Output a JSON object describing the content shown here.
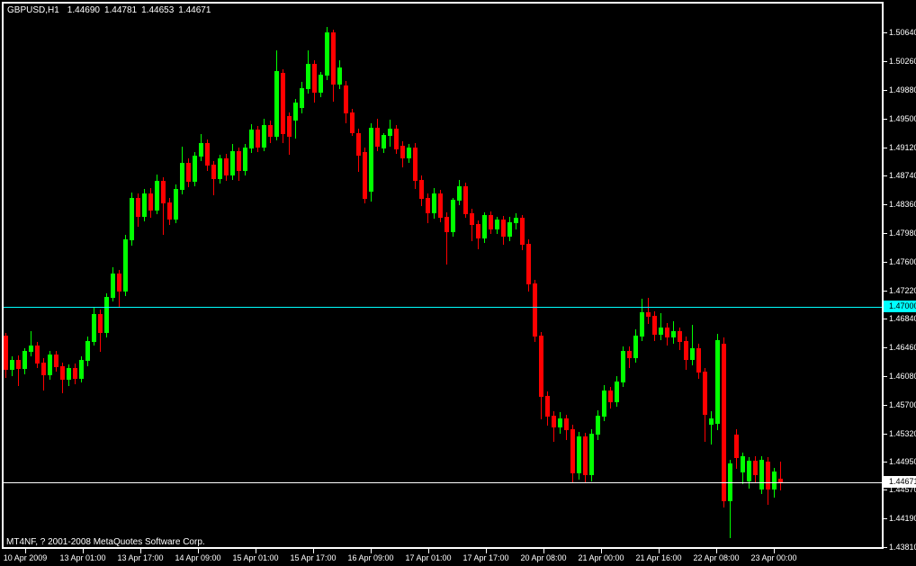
{
  "header": {
    "symbol_period": "GBPUSD,H1",
    "open": "1.44690",
    "high": "1.44781",
    "low": "1.44653",
    "close": "1.44671"
  },
  "footer": {
    "copyright": "MT4NF, ? 2001-2008 MetaQuotes Software Corp."
  },
  "price_axis": {
    "labels": [
      "1.50640",
      "1.50260",
      "1.49880",
      "1.49500",
      "1.49120",
      "1.48740",
      "1.48360",
      "1.47980",
      "1.47600",
      "1.47220",
      "1.46840",
      "1.46460",
      "1.46080",
      "1.45700",
      "1.45320",
      "1.44950",
      "1.44570",
      "1.44190",
      "1.43810"
    ]
  },
  "time_axis": {
    "labels": [
      "10 Apr 2009",
      "13 Apr 01:00",
      "13 Apr 17:00",
      "14 Apr 09:00",
      "15 Apr 01:00",
      "15 Apr 17:00",
      "16 Apr 09:00",
      "17 Apr 01:00",
      "17 Apr 17:00",
      "20 Apr 08:00",
      "21 Apr 00:00",
      "21 Apr 16:00",
      "22 Apr 08:00",
      "23 Apr 00:00"
    ]
  },
  "hlines": [
    {
      "name": "level-line",
      "price": 1.47,
      "label": "1.47000",
      "color": "#00FFFF"
    },
    {
      "name": "current-price-line",
      "price": 1.44671,
      "label": "1.44671",
      "color": "#FFFFFF"
    }
  ],
  "chart_data": {
    "type": "candlestick",
    "title": "GBPUSD,H1",
    "symbol": "GBPUSD",
    "timeframe": "H1",
    "up_color": "#00FF00",
    "down_color": "#FF0000",
    "background": "#000000",
    "grid": false,
    "y_range": [
      1.4381,
      1.509
    ],
    "x_range_labels": [
      "10 Apr 2009",
      "23 Apr 00:00"
    ],
    "legend_position": "none",
    "candles_ohlc": [
      [
        1.4662,
        1.4665,
        1.4607,
        1.4618
      ],
      [
        1.4618,
        1.4634,
        1.4609,
        1.463
      ],
      [
        1.463,
        1.4636,
        1.4596,
        1.4619
      ],
      [
        1.4619,
        1.4645,
        1.4612,
        1.4641
      ],
      [
        1.4641,
        1.4668,
        1.4636,
        1.4649
      ],
      [
        1.4649,
        1.4654,
        1.462,
        1.4626
      ],
      [
        1.4626,
        1.4632,
        1.459,
        1.4611
      ],
      [
        1.4611,
        1.4641,
        1.4605,
        1.4637
      ],
      [
        1.4637,
        1.4642,
        1.4615,
        1.4621
      ],
      [
        1.4621,
        1.4626,
        1.4587,
        1.4604
      ],
      [
        1.4604,
        1.4624,
        1.4596,
        1.4619
      ],
      [
        1.4619,
        1.4625,
        1.4598,
        1.4606
      ],
      [
        1.4606,
        1.4634,
        1.4601,
        1.4629
      ],
      [
        1.4629,
        1.466,
        1.4622,
        1.4655
      ],
      [
        1.4655,
        1.47,
        1.465,
        1.4691
      ],
      [
        1.4691,
        1.4696,
        1.4641,
        1.4667
      ],
      [
        1.4667,
        1.4718,
        1.466,
        1.4713
      ],
      [
        1.4713,
        1.4752,
        1.4708,
        1.4744
      ],
      [
        1.4744,
        1.4749,
        1.4701,
        1.4721
      ],
      [
        1.4721,
        1.4796,
        1.4716,
        1.4789
      ],
      [
        1.4789,
        1.4852,
        1.4783,
        1.4845
      ],
      [
        1.4845,
        1.485,
        1.4808,
        1.4821
      ],
      [
        1.4821,
        1.4856,
        1.4815,
        1.4851
      ],
      [
        1.4851,
        1.4858,
        1.482,
        1.4829
      ],
      [
        1.4829,
        1.4876,
        1.4824,
        1.4867
      ],
      [
        1.4867,
        1.4872,
        1.4797,
        1.4839
      ],
      [
        1.4839,
        1.4845,
        1.481,
        1.4817
      ],
      [
        1.4817,
        1.4862,
        1.4812,
        1.4857
      ],
      [
        1.4857,
        1.4913,
        1.4851,
        1.4891
      ],
      [
        1.4891,
        1.4897,
        1.486,
        1.4867
      ],
      [
        1.4867,
        1.4906,
        1.4861,
        1.4901
      ],
      [
        1.4901,
        1.4929,
        1.4895,
        1.4917
      ],
      [
        1.4917,
        1.4922,
        1.4882,
        1.4889
      ],
      [
        1.4889,
        1.4894,
        1.4849,
        1.4871
      ],
      [
        1.4871,
        1.4902,
        1.4865,
        1.4897
      ],
      [
        1.4897,
        1.4903,
        1.4869,
        1.4875
      ],
      [
        1.4875,
        1.4916,
        1.487,
        1.4907
      ],
      [
        1.4907,
        1.4912,
        1.4868,
        1.4881
      ],
      [
        1.4881,
        1.4916,
        1.4876,
        1.4911
      ],
      [
        1.4911,
        1.4943,
        1.4906,
        1.4935
      ],
      [
        1.4935,
        1.494,
        1.4907,
        1.4913
      ],
      [
        1.4913,
        1.495,
        1.4908,
        1.4941
      ],
      [
        1.4941,
        1.4947,
        1.4918,
        1.4927
      ],
      [
        1.4927,
        1.504,
        1.4922,
        1.5013
      ],
      [
        1.501,
        1.5015,
        1.4919,
        1.4931
      ],
      [
        1.4953,
        1.4958,
        1.4903,
        1.4927
      ],
      [
        1.4948,
        1.4976,
        1.4925,
        1.4971
      ],
      [
        1.4965,
        1.4999,
        1.4958,
        1.499
      ],
      [
        1.499,
        1.504,
        1.4984,
        1.5022
      ],
      [
        1.5022,
        1.5027,
        1.4972,
        1.4985
      ],
      [
        1.4985,
        1.5012,
        1.498,
        1.5008
      ],
      [
        1.5008,
        1.5071,
        1.5002,
        1.5064
      ],
      [
        1.5064,
        1.5068,
        1.4974,
        1.4996
      ],
      [
        1.4996,
        1.5027,
        1.499,
        1.5018
      ],
      [
        1.4994,
        1.5,
        1.4945,
        1.4958
      ],
      [
        1.4958,
        1.4963,
        1.4928,
        1.4932
      ],
      [
        1.493,
        1.4936,
        1.488,
        1.4902
      ],
      [
        1.4906,
        1.4912,
        1.4838,
        1.4844
      ],
      [
        1.4854,
        1.4944,
        1.4841,
        1.4938
      ],
      [
        1.4938,
        1.495,
        1.4908,
        1.4914
      ],
      [
        1.4912,
        1.493,
        1.4906,
        1.4928
      ],
      [
        1.4928,
        1.4948,
        1.4914,
        1.4936
      ],
      [
        1.4936,
        1.4941,
        1.4904,
        1.491
      ],
      [
        1.4914,
        1.492,
        1.4886,
        1.4898
      ],
      [
        1.4898,
        1.4916,
        1.4892,
        1.4912
      ],
      [
        1.4912,
        1.4917,
        1.4858,
        1.4868
      ],
      [
        1.4868,
        1.4874,
        1.4835,
        1.4845
      ],
      [
        1.4845,
        1.485,
        1.4812,
        1.4825
      ],
      [
        1.4825,
        1.4858,
        1.4818,
        1.485
      ],
      [
        1.485,
        1.4855,
        1.4814,
        1.482
      ],
      [
        1.482,
        1.4826,
        1.4757,
        1.48
      ],
      [
        1.48,
        1.4845,
        1.4794,
        1.4842
      ],
      [
        1.4842,
        1.4868,
        1.4836,
        1.486
      ],
      [
        1.486,
        1.4865,
        1.482,
        1.4824
      ],
      [
        1.4824,
        1.483,
        1.4788,
        1.481
      ],
      [
        1.481,
        1.4815,
        1.4778,
        1.4792
      ],
      [
        1.4792,
        1.4826,
        1.4786,
        1.4822
      ],
      [
        1.4822,
        1.4827,
        1.4798,
        1.4804
      ],
      [
        1.4804,
        1.482,
        1.4798,
        1.4816
      ],
      [
        1.4816,
        1.4821,
        1.4784,
        1.4794
      ],
      [
        1.4794,
        1.482,
        1.4788,
        1.4812
      ],
      [
        1.4812,
        1.4824,
        1.4804,
        1.4818
      ],
      [
        1.4818,
        1.4822,
        1.4776,
        1.4784
      ],
      [
        1.4784,
        1.4789,
        1.4722,
        1.4731
      ],
      [
        1.4731,
        1.4736,
        1.4655,
        1.4662
      ],
      [
        1.4662,
        1.4667,
        1.4552,
        1.4582
      ],
      [
        1.4582,
        1.4588,
        1.4544,
        1.4556
      ],
      [
        1.4556,
        1.4561,
        1.4522,
        1.4541
      ],
      [
        1.4541,
        1.456,
        1.4533,
        1.4552
      ],
      [
        1.4552,
        1.4557,
        1.4524,
        1.4538
      ],
      [
        1.4538,
        1.4543,
        1.4467,
        1.448
      ],
      [
        1.448,
        1.4534,
        1.4472,
        1.4528
      ],
      [
        1.4528,
        1.4533,
        1.4467,
        1.4478
      ],
      [
        1.4478,
        1.4538,
        1.447,
        1.4531
      ],
      [
        1.4531,
        1.4563,
        1.4524,
        1.4556
      ],
      [
        1.4556,
        1.4596,
        1.455,
        1.4589
      ],
      [
        1.4589,
        1.4594,
        1.4566,
        1.4575
      ],
      [
        1.4575,
        1.4608,
        1.4569,
        1.4601
      ],
      [
        1.4601,
        1.4648,
        1.4595,
        1.4641
      ],
      [
        1.4641,
        1.4648,
        1.462,
        1.4633
      ],
      [
        1.4633,
        1.467,
        1.4627,
        1.4662
      ],
      [
        1.4662,
        1.4711,
        1.4656,
        1.4693
      ],
      [
        1.4693,
        1.4712,
        1.4679,
        1.4688
      ],
      [
        1.4688,
        1.4694,
        1.4656,
        1.4664
      ],
      [
        1.4664,
        1.4692,
        1.4657,
        1.4672
      ],
      [
        1.4672,
        1.4678,
        1.465,
        1.466
      ],
      [
        1.466,
        1.4681,
        1.4652,
        1.4668
      ],
      [
        1.4668,
        1.4673,
        1.4644,
        1.4655
      ],
      [
        1.4655,
        1.466,
        1.4618,
        1.4631
      ],
      [
        1.4631,
        1.4676,
        1.4623,
        1.4645
      ],
      [
        1.4645,
        1.4651,
        1.4606,
        1.4614
      ],
      [
        1.4614,
        1.4619,
        1.4522,
        1.4558
      ],
      [
        1.4545,
        1.4562,
        1.4518,
        1.4552
      ],
      [
        1.4546,
        1.4664,
        1.4538,
        1.4656
      ],
      [
        1.4651,
        1.4659,
        1.4435,
        1.4443
      ],
      [
        1.4443,
        1.4497,
        1.4394,
        1.4492
      ],
      [
        1.453,
        1.4537,
        1.4486,
        1.45
      ],
      [
        1.4482,
        1.4506,
        1.4466,
        1.4502
      ],
      [
        1.447,
        1.45,
        1.446,
        1.4496
      ],
      [
        1.4496,
        1.4502,
        1.4468,
        1.4478
      ],
      [
        1.4459,
        1.4502,
        1.4453,
        1.4497
      ],
      [
        1.4494,
        1.45,
        1.4438,
        1.4459
      ],
      [
        1.4459,
        1.4486,
        1.4448,
        1.4482
      ],
      [
        1.4472,
        1.4495,
        1.4458,
        1.44671
      ]
    ]
  }
}
